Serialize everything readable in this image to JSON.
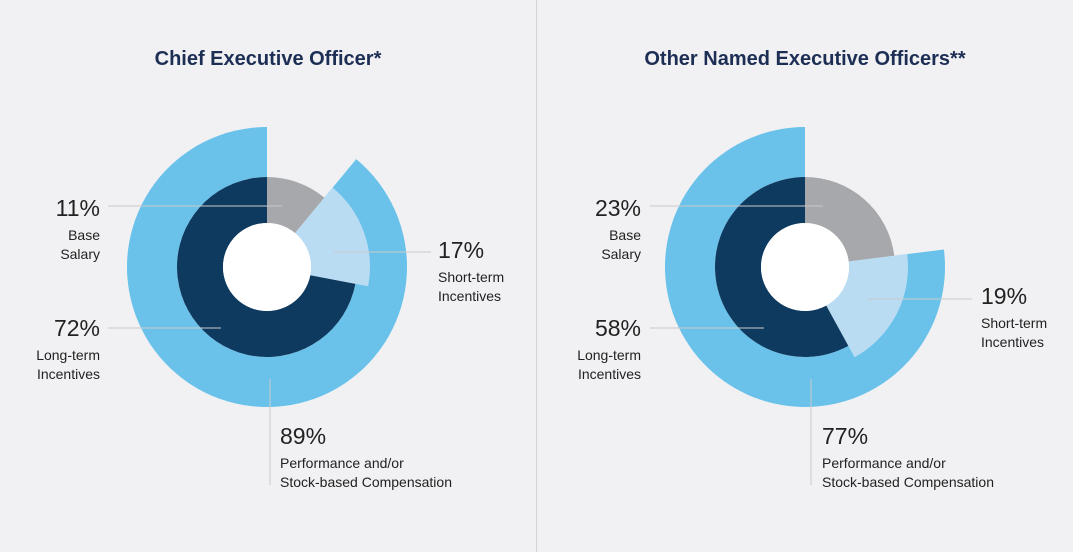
{
  "chart_data": [
    {
      "type": "pie",
      "title": "Chief Executive Officer*",
      "inner_ring": [
        {
          "name": "Base Salary",
          "value": 11,
          "label_pct": "11%",
          "label_lines": [
            "Base",
            "Salary"
          ],
          "color": "#a6a8ac"
        },
        {
          "name": "Short-term Incentives",
          "value": 17,
          "label_pct": "17%",
          "label_lines": [
            "Short-term",
            "Incentives"
          ],
          "color": "#b9dcf3"
        },
        {
          "name": "Long-term Incentives",
          "value": 72,
          "label_pct": "72%",
          "label_lines": [
            "Long-term",
            "Incentives"
          ],
          "color": "#0e3a5f"
        }
      ],
      "outer_ring": {
        "name": "Performance and/or Stock-based Compensation",
        "value": 89,
        "label_pct": "89%",
        "label_lines": [
          "Performance and/or",
          "Stock-based Compensation"
        ],
        "color": "#6ac2ea"
      }
    },
    {
      "type": "pie",
      "title": "Other Named Executive Officers**",
      "inner_ring": [
        {
          "name": "Base Salary",
          "value": 23,
          "label_pct": "23%",
          "label_lines": [
            "Base",
            "Salary"
          ],
          "color": "#a6a8ac"
        },
        {
          "name": "Short-term Incentives",
          "value": 19,
          "label_pct": "19%",
          "label_lines": [
            "Short-term",
            "Incentives"
          ],
          "color": "#b9dcf3"
        },
        {
          "name": "Long-term Incentives",
          "value": 58,
          "label_pct": "58%",
          "label_lines": [
            "Long-term",
            "Incentives"
          ],
          "color": "#0e3a5f"
        }
      ],
      "outer_ring": {
        "name": "Performance and/or Stock-based Compensation",
        "value": 77,
        "label_pct": "77%",
        "label_lines": [
          "Performance and/or",
          "Stock-based Compensation"
        ],
        "color": "#6ac2ea"
      }
    }
  ],
  "colors": {
    "title": "#1d2e55",
    "label": "#222222",
    "leader": "#c9c9cc"
  }
}
